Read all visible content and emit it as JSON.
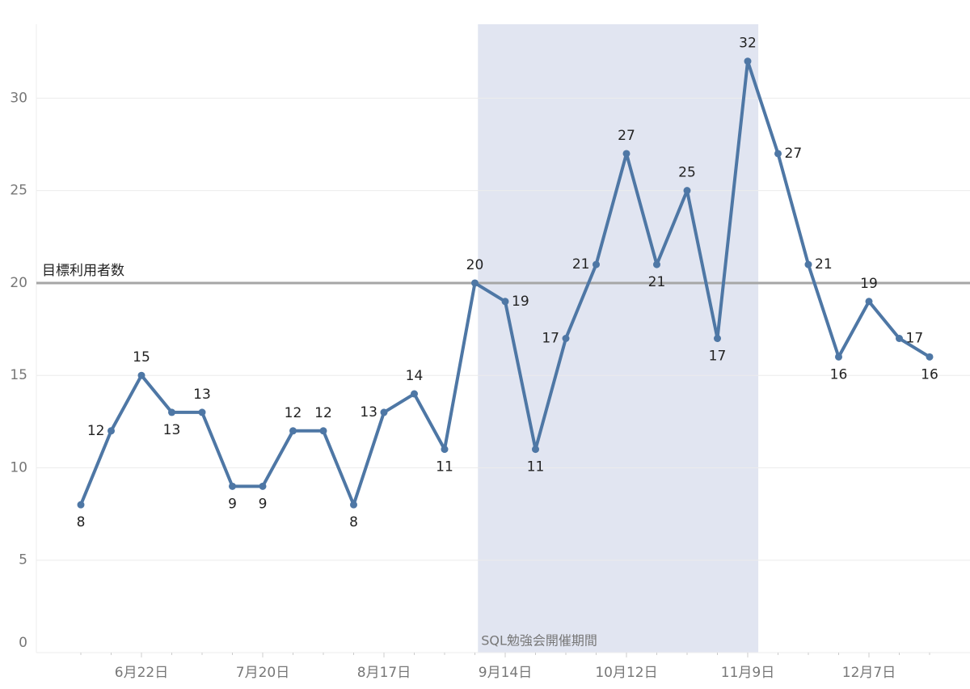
{
  "chart_data": {
    "type": "line",
    "categories": [
      null,
      null,
      "6月22日",
      null,
      null,
      null,
      "7月20日",
      null,
      null,
      null,
      "8月17日",
      null,
      null,
      null,
      "9月14日",
      null,
      null,
      null,
      "10月12日",
      null,
      null,
      null,
      "11月9日",
      null,
      null,
      null,
      "12月7日",
      null,
      null
    ],
    "values": [
      8,
      12,
      15,
      13,
      13,
      9,
      9,
      12,
      12,
      8,
      13,
      14,
      11,
      20,
      19,
      11,
      17,
      21,
      27,
      21,
      25,
      17,
      32,
      27,
      21,
      16,
      19,
      17,
      16
    ],
    "color": "#4e77a5",
    "ylim": [
      0,
      34
    ],
    "yticks": [
      0,
      5,
      10,
      15,
      20,
      25,
      30
    ],
    "grid": true,
    "reference_line": {
      "value": 20,
      "label": "目標利用者数",
      "color": "#a6a6a6"
    },
    "band": {
      "label": "SQL勉強会開催期間",
      "range": [
        13.1,
        22.35
      ],
      "color": "#e1e5f1"
    }
  }
}
